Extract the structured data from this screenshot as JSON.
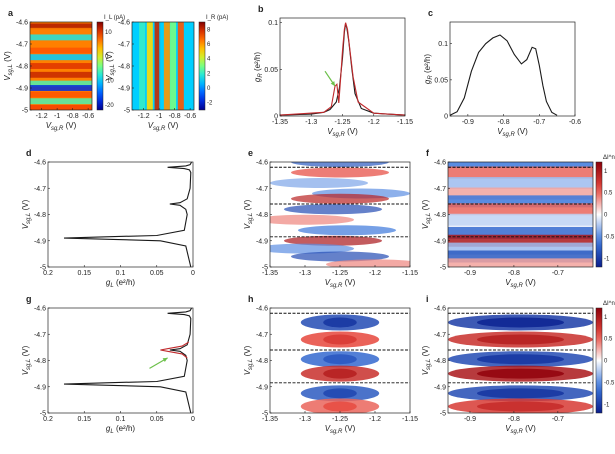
{
  "chart_data": [
    {
      "id": "a1",
      "panel_label": "a",
      "type": "heatmap",
      "xlabel": "V_sg,R (V)",
      "ylabel": "V_sg,L (V)",
      "xticks": [
        "-1.2",
        "-1",
        "-0.8",
        "-0.6"
      ],
      "yticks": [
        "-4.6",
        "-4.7",
        "-4.8",
        "-4.9",
        "-5"
      ],
      "xlim": [
        -1.35,
        -0.55
      ],
      "ylim": [
        -5,
        -4.6
      ],
      "colorbar": {
        "label": "I_L (pA)",
        "ticks": [
          "10",
          "0",
          "-10",
          "-20"
        ],
        "range": [
          -22,
          14
        ]
      },
      "bands": [
        {
          "y": -4.62,
          "v": 12
        },
        {
          "y": -4.64,
          "v": 6
        },
        {
          "y": -4.67,
          "v": -8
        },
        {
          "y": -4.73,
          "v": 8
        },
        {
          "y": -4.76,
          "v": -10
        },
        {
          "y": -4.8,
          "v": 10
        },
        {
          "y": -4.84,
          "v": 11
        },
        {
          "y": -4.88,
          "v": -6
        },
        {
          "y": -4.9,
          "v": -18
        },
        {
          "y": -4.93,
          "v": 8
        },
        {
          "y": -4.96,
          "v": -6
        },
        {
          "y": -4.99,
          "v": 9
        }
      ]
    },
    {
      "id": "a2",
      "panel_label": "",
      "type": "heatmap",
      "xlabel": "V_sg,R (V)",
      "ylabel": "V_sg,L (V)",
      "xticks": [
        "-1.2",
        "-1",
        "-0.8",
        "-0.6"
      ],
      "yticks": [
        "-4.6",
        "-4.7",
        "-4.8",
        "-4.9",
        "-5"
      ],
      "xlim": [
        -1.35,
        -0.55
      ],
      "ylim": [
        -5,
        -4.6
      ],
      "colorbar": {
        "label": "I_R (pA)",
        "ticks": [
          "8",
          "6",
          "4",
          "2",
          "0",
          "-2"
        ],
        "range": [
          -3,
          9
        ]
      },
      "stripes": [
        {
          "x": -1.22,
          "v": 2
        },
        {
          "x": -1.12,
          "v": 5
        },
        {
          "x": -1.02,
          "v": 8
        },
        {
          "x": -0.96,
          "v": 1
        },
        {
          "x": -0.9,
          "v": 6
        },
        {
          "x": -0.82,
          "v": 3
        },
        {
          "x": -0.72,
          "v": 7
        },
        {
          "x": -0.64,
          "v": 1
        }
      ]
    },
    {
      "id": "b",
      "panel_label": "b",
      "type": "line",
      "xlabel": "V_sg,R (V)",
      "ylabel": "g_R (e²/h)",
      "xlim": [
        -1.35,
        -1.15
      ],
      "ylim": [
        0,
        0.105
      ],
      "xticks": [
        "-1.35",
        "-1.3",
        "-1.25",
        "-1.2",
        "-1.15"
      ],
      "yticks": [
        "0",
        "0.05",
        "0.1"
      ],
      "series": [
        {
          "color": "#1a1a1a",
          "x": [
            -1.35,
            -1.3,
            -1.28,
            -1.27,
            -1.26,
            -1.255,
            -1.25,
            -1.247,
            -1.245,
            -1.243,
            -1.24,
            -1.235,
            -1.23,
            -1.22,
            -1.2,
            -1.15
          ],
          "y": [
            0.001,
            0.002,
            0.004,
            0.007,
            0.015,
            0.03,
            0.062,
            0.09,
            0.099,
            0.094,
            0.08,
            0.05,
            0.024,
            0.008,
            0.003,
            0.001
          ]
        },
        {
          "color": "#c0292c",
          "x": [
            -1.35,
            -1.28,
            -1.268,
            -1.262,
            -1.259,
            -1.256,
            -1.253,
            -1.25,
            -1.247,
            -1.245,
            -1.242,
            -1.238,
            -1.233,
            -1.225,
            -1.2,
            -1.15
          ],
          "y": [
            0.001,
            0.004,
            0.01,
            0.032,
            0.034,
            0.014,
            0.04,
            0.07,
            0.093,
            0.1,
            0.093,
            0.07,
            0.042,
            0.015,
            0.003,
            0.001
          ]
        }
      ],
      "annotation": {
        "kind": "arrow",
        "color": "#6cc04a",
        "from": [
          -1.278,
          0.048
        ],
        "to": [
          -1.262,
          0.032
        ]
      }
    },
    {
      "id": "c",
      "panel_label": "c",
      "type": "line",
      "xlabel": "V_sg,R (V)",
      "ylabel": "g_R (e²/h)",
      "xlim": [
        -0.95,
        -0.6
      ],
      "ylim": [
        0,
        0.13
      ],
      "xticks": [
        "-0.9",
        "-0.8",
        "-0.7",
        "-0.6"
      ],
      "yticks": [
        "0",
        "0.05",
        "0.1"
      ],
      "series": [
        {
          "color": "#1a1a1a",
          "x": [
            -0.95,
            -0.93,
            -0.91,
            -0.89,
            -0.87,
            -0.85,
            -0.83,
            -0.81,
            -0.79,
            -0.77,
            -0.75,
            -0.735,
            -0.72,
            -0.71,
            -0.7,
            -0.69,
            -0.68,
            -0.665,
            -0.65
          ],
          "y": [
            0.001,
            0.006,
            0.025,
            0.062,
            0.088,
            0.1,
            0.108,
            0.112,
            0.104,
            0.085,
            0.072,
            0.078,
            0.095,
            0.093,
            0.07,
            0.042,
            0.02,
            0.005,
            0.001
          ]
        }
      ]
    },
    {
      "id": "d",
      "panel_label": "d",
      "type": "line",
      "orientation": "horizontal",
      "xlabel": "g_L (e²/h)",
      "ylabel": "V_sg,L (V)",
      "xlim": [
        0.2,
        0
      ],
      "ylim": [
        -5,
        -4.6
      ],
      "xticks": [
        "0.2",
        "0.15",
        "0.1",
        "0.05",
        "0"
      ],
      "yticks": [
        "-4.6",
        "-4.7",
        "-4.8",
        "-4.9",
        "-5"
      ],
      "series": [
        {
          "color": "#1a1a1a",
          "y": [
            -4.6,
            -4.61,
            -4.615,
            -4.62,
            -4.625,
            -4.63,
            -4.64,
            -4.7,
            -4.74,
            -4.755,
            -4.76,
            -4.765,
            -4.78,
            -4.8,
            -4.86,
            -4.88,
            -4.885,
            -4.89,
            -4.895,
            -4.9,
            -4.92,
            -5
          ],
          "x": [
            0.002,
            0.004,
            0.01,
            0.035,
            0.012,
            0.005,
            0.003,
            0.004,
            0.008,
            0.018,
            0.032,
            0.018,
            0.01,
            0.008,
            0.012,
            0.05,
            0.12,
            0.178,
            0.11,
            0.045,
            0.01,
            0.003
          ]
        }
      ]
    },
    {
      "id": "e",
      "panel_label": "e",
      "type": "heatmap",
      "xlabel": "V_sg,R (V)",
      "ylabel": "V_sg,L (V)",
      "xlim": [
        -1.35,
        -1.15
      ],
      "ylim": [
        -5,
        -4.6
      ],
      "xticks": [
        "-1.35",
        "-1.3",
        "-1.25",
        "-1.2",
        "-1.15"
      ],
      "yticks": [
        "-4.6",
        "-4.7",
        "-4.8",
        "-4.9",
        "-5"
      ],
      "hlines": [
        -4.62,
        -4.76,
        -4.885
      ],
      "cells": [
        {
          "y": -4.6,
          "x": -1.25,
          "v": -0.8
        },
        {
          "y": -4.64,
          "x": -1.25,
          "v": 0.6
        },
        {
          "y": -4.68,
          "x": -1.28,
          "v": -0.4
        },
        {
          "y": -4.72,
          "x": -1.22,
          "v": -0.5
        },
        {
          "y": -4.74,
          "x": -1.25,
          "v": 0.9
        },
        {
          "y": -4.78,
          "x": -1.26,
          "v": -0.9
        },
        {
          "y": -4.82,
          "x": -1.3,
          "v": 0.4
        },
        {
          "y": -4.86,
          "x": -1.24,
          "v": -0.6
        },
        {
          "y": -4.9,
          "x": -1.26,
          "v": 1.0
        },
        {
          "y": -4.93,
          "x": -1.3,
          "v": -0.5
        },
        {
          "y": -4.96,
          "x": -1.25,
          "v": -0.9
        },
        {
          "y": -4.99,
          "x": -1.2,
          "v": 0.4
        }
      ]
    },
    {
      "id": "f",
      "panel_label": "f",
      "type": "heatmap",
      "xlabel": "V_sg,R (V)",
      "ylabel": "V_sg,L (V)",
      "xlim": [
        -0.95,
        -0.62
      ],
      "ylim": [
        -5,
        -4.6
      ],
      "xticks": [
        "-0.9",
        "-0.8",
        "-0.7"
      ],
      "yticks": [
        "-4.6",
        "-4.7",
        "-4.8",
        "-4.9",
        "-5"
      ],
      "hlines": [
        -4.62,
        -4.76,
        -4.885
      ],
      "colorbar": {
        "label": "ΔI^nl (pA)",
        "ticks": [
          "1",
          "0.5",
          "0",
          "-0.5",
          "-1"
        ],
        "range": [
          -1.2,
          1.2
        ]
      },
      "bands": [
        {
          "y": -4.6,
          "v": -0.6
        },
        {
          "y": -4.64,
          "v": 0.5
        },
        {
          "y": -4.68,
          "v": -0.3
        },
        {
          "y": -4.72,
          "v": 0.3
        },
        {
          "y": -4.75,
          "v": -0.6
        },
        {
          "y": -4.78,
          "v": 0.5
        },
        {
          "y": -4.82,
          "v": -0.2
        },
        {
          "y": -4.87,
          "v": -0.7
        },
        {
          "y": -4.9,
          "v": 1.0
        },
        {
          "y": -4.93,
          "v": -0.3
        },
        {
          "y": -4.96,
          "v": -0.8
        },
        {
          "y": -4.99,
          "v": 0.3
        }
      ]
    },
    {
      "id": "g",
      "panel_label": "g",
      "type": "line",
      "orientation": "horizontal",
      "xlabel": "g_L (e²/h)",
      "ylabel": "V_sg,L (V)",
      "xlim": [
        0.2,
        0
      ],
      "ylim": [
        -5,
        -4.6
      ],
      "xticks": [
        "0.2",
        "0.15",
        "0.1",
        "0.05",
        "0"
      ],
      "yticks": [
        "-4.6",
        "-4.7",
        "-4.8",
        "-4.9",
        "-5"
      ],
      "series": [
        {
          "color": "#1a1a1a",
          "y": [
            -4.6,
            -4.61,
            -4.615,
            -4.62,
            -4.625,
            -4.63,
            -4.64,
            -4.7,
            -4.74,
            -4.755,
            -4.76,
            -4.765,
            -4.78,
            -4.8,
            -4.86,
            -4.88,
            -4.885,
            -4.89,
            -4.895,
            -4.9,
            -4.92,
            -5
          ],
          "x": [
            0.002,
            0.004,
            0.01,
            0.035,
            0.012,
            0.005,
            0.003,
            0.004,
            0.008,
            0.018,
            0.032,
            0.018,
            0.01,
            0.008,
            0.012,
            0.05,
            0.12,
            0.178,
            0.11,
            0.045,
            0.01,
            0.003
          ]
        },
        {
          "color": "#c0292c",
          "y": [
            -4.73,
            -4.745,
            -4.755,
            -4.76,
            -4.765,
            -4.775,
            -4.79
          ],
          "x": [
            0.006,
            0.015,
            0.035,
            0.045,
            0.035,
            0.015,
            0.008
          ]
        }
      ],
      "annotation": {
        "kind": "arrow",
        "color": "#6cc04a",
        "from": [
          0.06,
          -4.83
        ],
        "to": [
          0.035,
          -4.79
        ]
      }
    },
    {
      "id": "h",
      "panel_label": "h",
      "type": "heatmap",
      "xlabel": "V_sg,R (V)",
      "ylabel": "V_sg,L (V)",
      "xlim": [
        -1.35,
        -1.15
      ],
      "ylim": [
        -5,
        -4.6
      ],
      "xticks": [
        "-1.35",
        "-1.3",
        "-1.25",
        "-1.2",
        "-1.15"
      ],
      "yticks": [
        "-4.6",
        "-4.7",
        "-4.8",
        "-4.9",
        "-5"
      ],
      "hlines": [
        -4.62,
        -4.76,
        -4.885
      ],
      "blobs": [
        {
          "y": -4.655,
          "v": -0.9
        },
        {
          "y": -4.72,
          "v": 0.6
        },
        {
          "y": -4.795,
          "v": -0.7
        },
        {
          "y": -4.85,
          "v": 0.8
        },
        {
          "y": -4.925,
          "v": -0.8
        },
        {
          "y": -4.975,
          "v": 0.5
        }
      ]
    },
    {
      "id": "i",
      "panel_label": "i",
      "type": "heatmap",
      "xlabel": "V_sg,R (V)",
      "ylabel": "V_sg,L (V)",
      "xlim": [
        -0.95,
        -0.62
      ],
      "ylim": [
        -5,
        -4.6
      ],
      "xticks": [
        "-0.9",
        "-0.8",
        "-0.7"
      ],
      "yticks": [
        "-4.6",
        "-4.7",
        "-4.8",
        "-4.9",
        "-5"
      ],
      "hlines": [
        -4.62,
        -4.76,
        -4.885
      ],
      "colorbar": {
        "label": "ΔI^nl (pA)",
        "ticks": [
          "1",
          "0.5",
          "0",
          "-0.5",
          "-1"
        ],
        "range": [
          -1.2,
          1.2
        ]
      },
      "blobs": [
        {
          "y": -4.655,
          "v": -1.0
        },
        {
          "y": -4.72,
          "v": 0.8
        },
        {
          "y": -4.795,
          "v": -0.9
        },
        {
          "y": -4.85,
          "v": 1.0
        },
        {
          "y": -4.925,
          "v": -0.9
        },
        {
          "y": -4.975,
          "v": 0.7
        }
      ]
    }
  ]
}
